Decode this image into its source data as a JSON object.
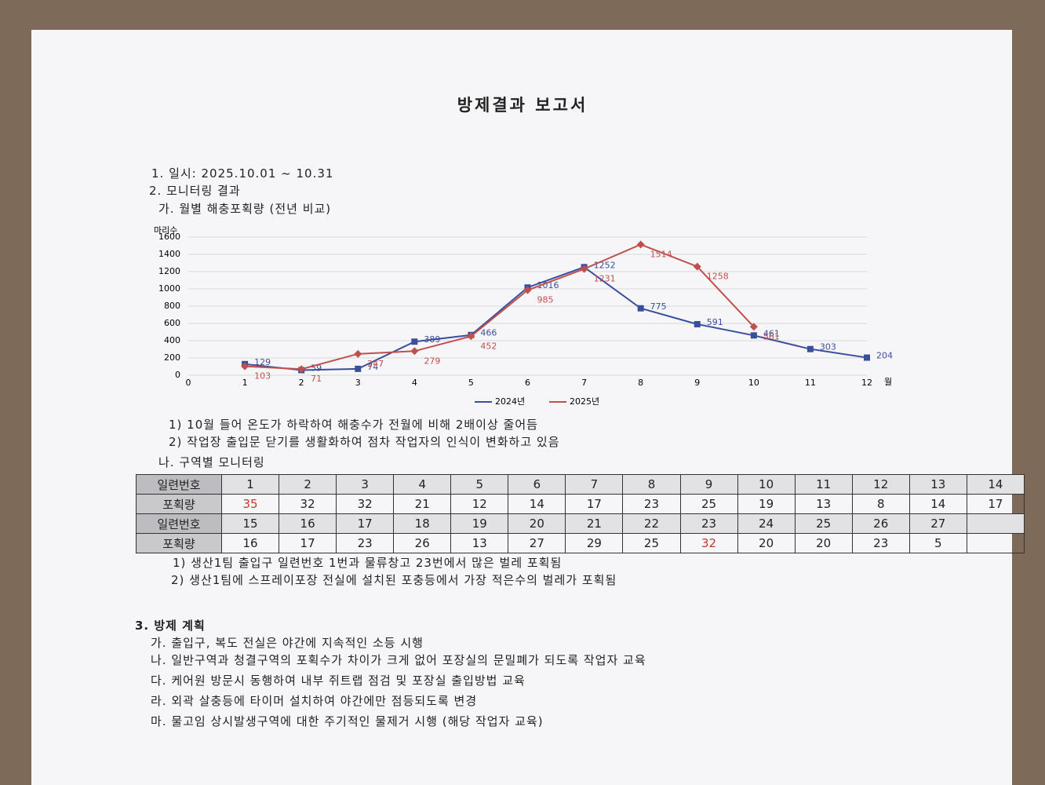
{
  "title": "방제결과 보고서",
  "section1": "1. 일시: 2025.10.01 ~ 10.31",
  "section2": {
    "heading": "2. 모니터링 결과",
    "sub_a": "가. 월별 해충포획량 (전년 비교)",
    "notes_a": [
      "1) 10월 들어 온도가 하락하여 해충수가 전월에 비해 2배이상 줄어듬",
      "2) 작업장 출입문 닫기를 생활화하여 점차 작업자의 인식이 변화하고 있음"
    ],
    "sub_b": "나. 구역별 모니터링",
    "notes_b": [
      "1) 생산1팀 출입구 일련번호 1번과 물류창고 23번에서 많은 벌레 포획됨",
      "2) 생산1팀에 스프레이포장 전실에 설치된 포충등에서 가장 적은수의 벌레가 포획됨"
    ]
  },
  "chart_data": {
    "type": "line",
    "y_label": "마리수",
    "x_label": "월",
    "x": [
      1,
      2,
      3,
      4,
      5,
      6,
      7,
      8,
      9,
      10,
      11,
      12
    ],
    "xlim": [
      0,
      12
    ],
    "xticks": [
      0,
      1,
      2,
      3,
      4,
      5,
      6,
      7,
      8,
      9,
      10,
      11,
      12
    ],
    "ylim": [
      0,
      1600
    ],
    "yticks": [
      0,
      200,
      400,
      600,
      800,
      1000,
      1200,
      1400,
      1600
    ],
    "grid": true,
    "legend": "bottom",
    "series": [
      {
        "name": "2024년",
        "color": "#3a4f9c",
        "values": [
          129,
          59,
          74,
          389,
          466,
          1016,
          1252,
          775,
          591,
          461,
          303,
          204
        ]
      },
      {
        "name": "2025년",
        "color": "#c0504d",
        "values": [
          103,
          71,
          247,
          279,
          452,
          985,
          1231,
          1514,
          1258,
          561,
          null,
          null
        ]
      }
    ]
  },
  "table": {
    "rows": [
      [
        "일련번호",
        1,
        2,
        3,
        4,
        5,
        6,
        7,
        8,
        9,
        10,
        11,
        12,
        13,
        14
      ],
      [
        "포획량",
        35,
        32,
        32,
        21,
        12,
        14,
        17,
        23,
        25,
        19,
        13,
        8,
        14,
        17
      ],
      [
        "일련번호",
        15,
        16,
        17,
        18,
        19,
        20,
        21,
        22,
        23,
        24,
        25,
        26,
        27
      ],
      [
        "포획량",
        16,
        17,
        23,
        26,
        13,
        27,
        29,
        25,
        32,
        20,
        20,
        23,
        5
      ]
    ]
  },
  "section3": {
    "heading": "3. 방제 계획",
    "items": [
      "가. 출입구, 복도 전실은 야간에 지속적인 소등 시행",
      "나. 일반구역과 청결구역의 포획수가 차이가 크게 없어 포장실의 문밀폐가 되도록 작업자 교육",
      "다. 케어원 방문시 동행하여 내부 쥐트랩 점검 및 포장실 출입방법 교육",
      "라. 외곽 살충등에 타이머 설치하여 야간에만 점등되도록 변경",
      "마. 물고임 상시발생구역에 대한 주기적인 물제거 시행 (해당 작업자 교육)"
    ]
  }
}
